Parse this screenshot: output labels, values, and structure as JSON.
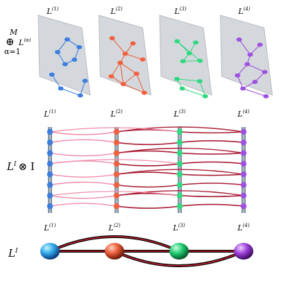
{
  "top": {
    "label": {
      "symbol": "⊕",
      "upper": "M",
      "lower": "α=1",
      "base": "L",
      "sup": "(α)"
    },
    "layers": [
      {
        "base": "L",
        "sup": "(1)"
      },
      {
        "base": "L",
        "sup": "(2)"
      },
      {
        "base": "L",
        "sup": "(3)"
      },
      {
        "base": "L",
        "sup": "(4)"
      }
    ]
  },
  "middle": {
    "label": {
      "base": "L",
      "sup": "I",
      "rest": "⊗ I"
    },
    "layers": [
      {
        "base": "L",
        "sup": "(1)"
      },
      {
        "base": "L",
        "sup": "(2)"
      },
      {
        "base": "L",
        "sup": "(3)"
      },
      {
        "base": "L",
        "sup": "(4)"
      }
    ]
  },
  "bottom": {
    "label": {
      "base": "L",
      "sup": "I"
    },
    "layers": [
      {
        "base": "L",
        "sup": "(1)"
      },
      {
        "base": "L",
        "sup": "(2)"
      },
      {
        "base": "L",
        "sup": "(3)"
      },
      {
        "base": "L",
        "sup": "(4)"
      }
    ]
  }
}
